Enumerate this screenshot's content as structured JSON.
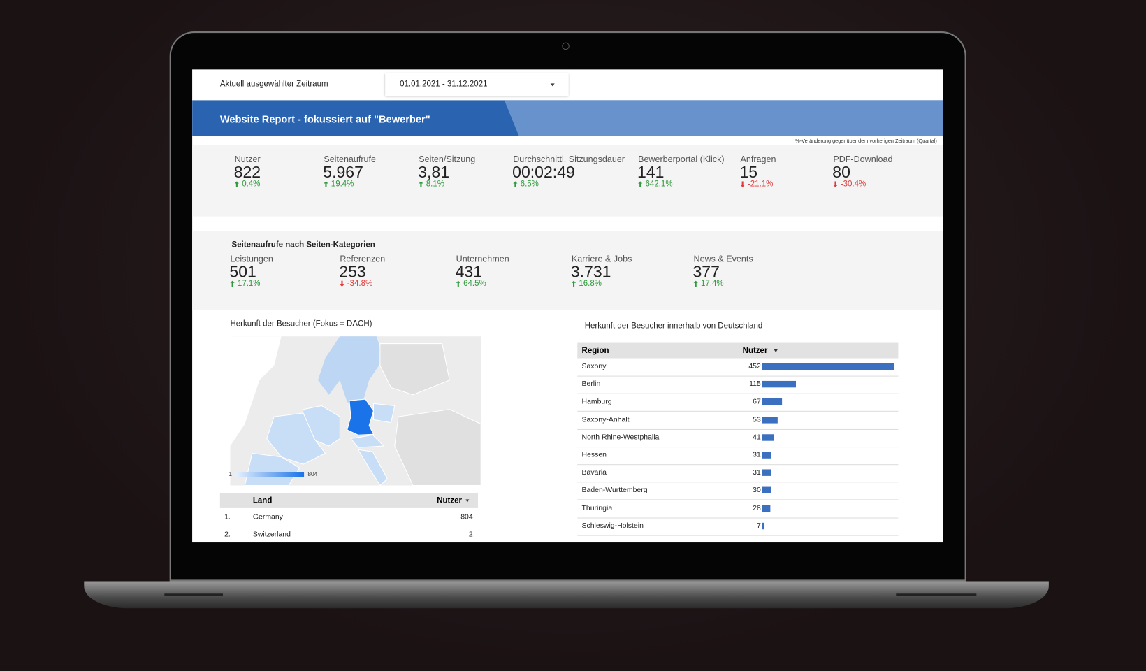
{
  "header": {
    "period_label": "Aktuell ausgewählter Zeitraum",
    "period_value": "01.01.2021 - 31.12.2021",
    "title": "Website Report - fokussiert auf \"Bewerber\"",
    "note": "%-Veränderung gegenüber dem vorherigen Zeitraum (Quartal)"
  },
  "kpis": [
    {
      "label": "Nutzer",
      "value": "822",
      "change": "0.4%",
      "direction": "up"
    },
    {
      "label": "Seitenaufrufe",
      "value": "5.967",
      "change": "19.4%",
      "direction": "up"
    },
    {
      "label": "Seiten/Sitzung",
      "value": "3,81",
      "change": "8.1%",
      "direction": "up"
    },
    {
      "label": "Durchschnittl. Sitzungsdauer",
      "value": "00:02:49",
      "change": "6.5%",
      "direction": "up"
    },
    {
      "label": "Bewerberportal (Klick)",
      "value": "141",
      "change": "642.1%",
      "direction": "up"
    },
    {
      "label": "Anfragen",
      "value": "15",
      "change": "-21.1%",
      "direction": "down"
    },
    {
      "label": "PDF-Download",
      "value": "80",
      "change": "-30.4%",
      "direction": "down"
    }
  ],
  "page_categories": {
    "title": "Seitenaufrufe nach Seiten-Kategorien",
    "items": [
      {
        "label": "Leistungen",
        "value": "501",
        "change": "17.1%",
        "direction": "up"
      },
      {
        "label": "Referenzen",
        "value": "253",
        "change": "-34.8%",
        "direction": "down"
      },
      {
        "label": "Unternehmen",
        "value": "431",
        "change": "64.5%",
        "direction": "up"
      },
      {
        "label": "Karriere & Jobs",
        "value": "3.731",
        "change": "16.8%",
        "direction": "up"
      },
      {
        "label": "News & Events",
        "value": "377",
        "change": "17.4%",
        "direction": "up"
      }
    ]
  },
  "map": {
    "title": "Herkunft der Besucher (Fokus = DACH)",
    "legend_min": "1",
    "legend_max": "804"
  },
  "country_table": {
    "columns": [
      "Land",
      "Nutzer"
    ],
    "rows": [
      {
        "rank": "1.",
        "country": "Germany",
        "users": 804
      },
      {
        "rank": "2.",
        "country": "Switzerland",
        "users": 2
      }
    ]
  },
  "region_table": {
    "title": "Herkunft der Besucher innerhalb von Deutschland",
    "columns": [
      "Region",
      "Nutzer"
    ],
    "rows": [
      {
        "region": "Saxony",
        "users": 452
      },
      {
        "region": "Berlin",
        "users": 115
      },
      {
        "region": "Hamburg",
        "users": 67
      },
      {
        "region": "Saxony-Anhalt",
        "users": 53
      },
      {
        "region": "North Rhine-Westphalia",
        "users": 41
      },
      {
        "region": "Hessen",
        "users": 31
      },
      {
        "region": "Bavaria",
        "users": 31
      },
      {
        "region": "Baden-Wurttemberg",
        "users": 30
      },
      {
        "region": "Thuringia",
        "users": 28
      },
      {
        "region": "Schleswig-Holstein",
        "users": 7
      }
    ]
  }
}
